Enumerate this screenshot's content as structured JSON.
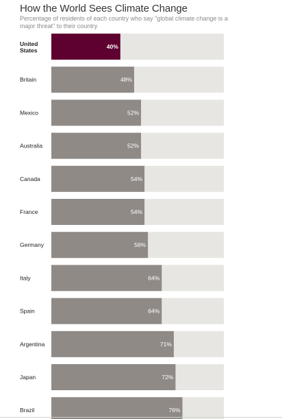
{
  "title": "How the World Sees Climate Change",
  "subtitle": "Percentage of residents of each country who say \"global climate change is a major threat\" to their country",
  "colors": {
    "highlight": "#5e0030",
    "bar": "#8f8a86",
    "track": "#e7e6e2",
    "label": "#222222",
    "value": "#ffffff"
  },
  "chart_data": {
    "type": "bar",
    "orientation": "horizontal",
    "categories": [
      "United States",
      "Britain",
      "Mexico",
      "Australia",
      "Canada",
      "France",
      "Germany",
      "Italy",
      "Spain",
      "Argentina",
      "Japan",
      "Brazil"
    ],
    "values": [
      40,
      48,
      52,
      52,
      54,
      54,
      56,
      64,
      64,
      71,
      72,
      76
    ],
    "value_labels": [
      "40%",
      "48%",
      "52%",
      "52%",
      "54%",
      "54%",
      "56%",
      "64%",
      "64%",
      "71%",
      "72%",
      "76%"
    ],
    "highlight": "United States",
    "xlim": [
      0,
      100
    ],
    "title": "How the World Sees Climate Change",
    "xlabel": "",
    "ylabel": ""
  }
}
